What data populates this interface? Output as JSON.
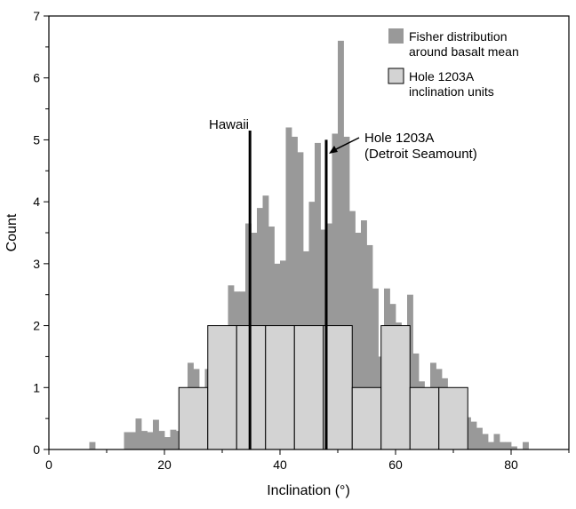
{
  "chart_data": {
    "type": "bar",
    "title": "",
    "xlabel": "Inclination (°)",
    "ylabel": "Count",
    "xlim": [
      0,
      90
    ],
    "ylim": [
      0,
      7
    ],
    "x_ticks": [
      0,
      20,
      40,
      60,
      80
    ],
    "y_ticks": [
      0,
      1,
      2,
      3,
      4,
      5,
      6,
      7
    ],
    "grid": false,
    "legend_position": "top-right",
    "series": [
      {
        "name": "Fisher distribution around basalt mean",
        "color": "#999999",
        "bin_width": 1,
        "bins": [
          [
            7,
            0.12
          ],
          [
            13,
            0.28
          ],
          [
            14,
            0.28
          ],
          [
            15,
            0.5
          ],
          [
            16,
            0.3
          ],
          [
            17,
            0.28
          ],
          [
            18,
            0.48
          ],
          [
            19,
            0.3
          ],
          [
            20,
            0.2
          ],
          [
            21,
            0.32
          ],
          [
            22,
            0.3
          ],
          [
            23,
            0.9
          ],
          [
            24,
            1.4
          ],
          [
            25,
            1.3
          ],
          [
            26,
            1.0
          ],
          [
            27,
            1.3
          ],
          [
            28,
            1.05
          ],
          [
            29,
            1.3
          ],
          [
            30,
            1.55
          ],
          [
            31,
            2.65
          ],
          [
            32,
            2.55
          ],
          [
            33,
            2.55
          ],
          [
            34,
            3.65
          ],
          [
            35,
            3.5
          ],
          [
            36,
            3.9
          ],
          [
            37,
            4.1
          ],
          [
            38,
            3.6
          ],
          [
            39,
            3.0
          ],
          [
            40,
            3.05
          ],
          [
            41,
            5.2
          ],
          [
            42,
            5.05
          ],
          [
            43,
            4.8
          ],
          [
            44,
            3.2
          ],
          [
            45,
            4.0
          ],
          [
            46,
            4.95
          ],
          [
            47,
            3.55
          ],
          [
            48,
            3.65
          ],
          [
            49,
            5.1
          ],
          [
            50,
            6.6
          ],
          [
            51,
            5.05
          ],
          [
            52,
            3.85
          ],
          [
            53,
            3.5
          ],
          [
            54,
            3.7
          ],
          [
            55,
            3.3
          ],
          [
            56,
            2.6
          ],
          [
            57,
            1.5
          ],
          [
            58,
            2.6
          ],
          [
            59,
            2.35
          ],
          [
            60,
            2.05
          ],
          [
            61,
            1.55
          ],
          [
            62,
            2.5
          ],
          [
            63,
            1.55
          ],
          [
            64,
            1.1
          ],
          [
            65,
            1.0
          ],
          [
            66,
            1.4
          ],
          [
            67,
            1.3
          ],
          [
            68,
            1.15
          ],
          [
            69,
            0.85
          ],
          [
            70,
            0.5
          ],
          [
            71,
            0.3
          ],
          [
            72,
            0.52
          ],
          [
            73,
            0.45
          ],
          [
            74,
            0.35
          ],
          [
            75,
            0.25
          ],
          [
            76,
            0.12
          ],
          [
            77,
            0.25
          ],
          [
            78,
            0.12
          ],
          [
            79,
            0.12
          ],
          [
            80,
            0.05
          ],
          [
            82,
            0.12
          ]
        ]
      },
      {
        "name": "Hole 1203A inclination units",
        "color": "#d3d3d3",
        "bin_width": 5,
        "bins": [
          [
            22.5,
            1
          ],
          [
            27.5,
            2
          ],
          [
            32.5,
            2
          ],
          [
            37.5,
            2
          ],
          [
            42.5,
            2
          ],
          [
            47.5,
            2
          ],
          [
            52.5,
            1
          ],
          [
            57.5,
            2
          ],
          [
            62.5,
            1
          ],
          [
            67.5,
            1
          ]
        ]
      }
    ],
    "reference_lines": [
      {
        "label": "Hawaii",
        "x": 34.8,
        "top": 5.15
      },
      {
        "label": "Hole 1203A (Detroit Seamount)",
        "x": 48.0,
        "top": 5.0
      }
    ],
    "annotations": {
      "hawaii": "Hawaii",
      "hole_line1": "Hole 1203A",
      "hole_line2": "(Detroit Seamount)"
    },
    "legend": [
      {
        "line1": "Fisher distribution",
        "line2": "around basalt mean",
        "color": "#999999"
      },
      {
        "line1": "Hole 1203A",
        "line2": "inclination units",
        "color": "#d3d3d3"
      }
    ]
  }
}
